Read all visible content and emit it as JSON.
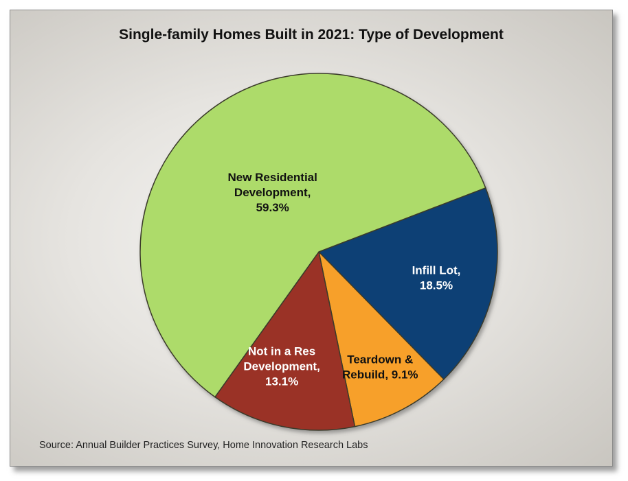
{
  "chart_data": {
    "type": "pie",
    "title": "Single-family Homes Built in 2021: Type of Development",
    "slices": [
      {
        "label_lines": [
          "Infill Lot,",
          "18.5%"
        ],
        "name": "Infill Lot",
        "value": 18.5,
        "color": "#0f3f74",
        "text_color": "#ffffff"
      },
      {
        "label_lines": [
          "Teardown &",
          "Rebuild, 9.1%"
        ],
        "name": "Teardown & Rebuild",
        "value": 9.1,
        "color": "#f7a02a",
        "text_color": "#111111"
      },
      {
        "label_lines": [
          "Not in a Res",
          "Development,",
          "13.1%"
        ],
        "name": "Not in a Res Development",
        "value": 13.1,
        "color": "#9a3128",
        "text_color": "#ffffff"
      },
      {
        "label_lines": [
          "New Residential",
          "Development,",
          "59.3%"
        ],
        "name": "New Residential Development",
        "value": 59.3,
        "color": "#addb6b",
        "text_color": "#111111"
      }
    ],
    "source": "Source: Annual Builder Practices Survey, Home Innovation Research Labs"
  }
}
